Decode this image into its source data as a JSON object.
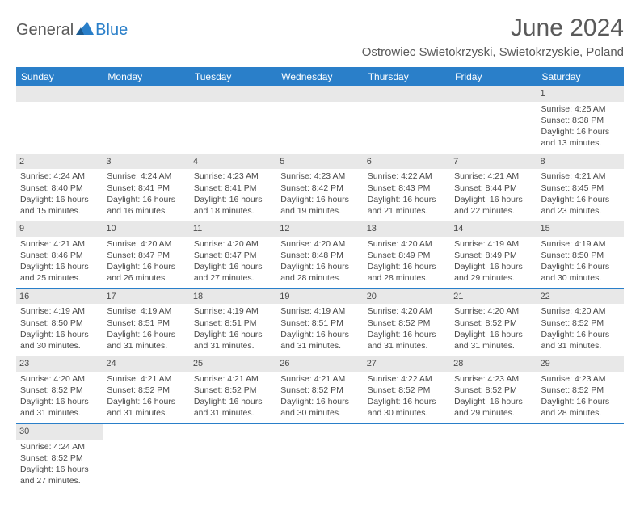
{
  "logo": {
    "part1": "General",
    "part2": "Blue"
  },
  "title": "June 2024",
  "location": "Ostrowiec Swietokrzyski, Swietokrzyskie, Poland",
  "colors": {
    "header_bg": "#2a7fc9",
    "header_text": "#ffffff",
    "daynum_bg": "#e8e8e8",
    "border": "#2a7fc9",
    "text": "#4a4a4a",
    "logo_gray": "#5a5a5a",
    "logo_blue": "#2a7fc9"
  },
  "daysOfWeek": [
    "Sunday",
    "Monday",
    "Tuesday",
    "Wednesday",
    "Thursday",
    "Friday",
    "Saturday"
  ],
  "weeks": [
    [
      {
        "empty": true
      },
      {
        "empty": true
      },
      {
        "empty": true
      },
      {
        "empty": true
      },
      {
        "empty": true
      },
      {
        "empty": true
      },
      {
        "num": "1",
        "sunrise": "Sunrise: 4:25 AM",
        "sunset": "Sunset: 8:38 PM",
        "day1": "Daylight: 16 hours",
        "day2": "and 13 minutes."
      }
    ],
    [
      {
        "num": "2",
        "sunrise": "Sunrise: 4:24 AM",
        "sunset": "Sunset: 8:40 PM",
        "day1": "Daylight: 16 hours",
        "day2": "and 15 minutes."
      },
      {
        "num": "3",
        "sunrise": "Sunrise: 4:24 AM",
        "sunset": "Sunset: 8:41 PM",
        "day1": "Daylight: 16 hours",
        "day2": "and 16 minutes."
      },
      {
        "num": "4",
        "sunrise": "Sunrise: 4:23 AM",
        "sunset": "Sunset: 8:41 PM",
        "day1": "Daylight: 16 hours",
        "day2": "and 18 minutes."
      },
      {
        "num": "5",
        "sunrise": "Sunrise: 4:23 AM",
        "sunset": "Sunset: 8:42 PM",
        "day1": "Daylight: 16 hours",
        "day2": "and 19 minutes."
      },
      {
        "num": "6",
        "sunrise": "Sunrise: 4:22 AM",
        "sunset": "Sunset: 8:43 PM",
        "day1": "Daylight: 16 hours",
        "day2": "and 21 minutes."
      },
      {
        "num": "7",
        "sunrise": "Sunrise: 4:21 AM",
        "sunset": "Sunset: 8:44 PM",
        "day1": "Daylight: 16 hours",
        "day2": "and 22 minutes."
      },
      {
        "num": "8",
        "sunrise": "Sunrise: 4:21 AM",
        "sunset": "Sunset: 8:45 PM",
        "day1": "Daylight: 16 hours",
        "day2": "and 23 minutes."
      }
    ],
    [
      {
        "num": "9",
        "sunrise": "Sunrise: 4:21 AM",
        "sunset": "Sunset: 8:46 PM",
        "day1": "Daylight: 16 hours",
        "day2": "and 25 minutes."
      },
      {
        "num": "10",
        "sunrise": "Sunrise: 4:20 AM",
        "sunset": "Sunset: 8:47 PM",
        "day1": "Daylight: 16 hours",
        "day2": "and 26 minutes."
      },
      {
        "num": "11",
        "sunrise": "Sunrise: 4:20 AM",
        "sunset": "Sunset: 8:47 PM",
        "day1": "Daylight: 16 hours",
        "day2": "and 27 minutes."
      },
      {
        "num": "12",
        "sunrise": "Sunrise: 4:20 AM",
        "sunset": "Sunset: 8:48 PM",
        "day1": "Daylight: 16 hours",
        "day2": "and 28 minutes."
      },
      {
        "num": "13",
        "sunrise": "Sunrise: 4:20 AM",
        "sunset": "Sunset: 8:49 PM",
        "day1": "Daylight: 16 hours",
        "day2": "and 28 minutes."
      },
      {
        "num": "14",
        "sunrise": "Sunrise: 4:19 AM",
        "sunset": "Sunset: 8:49 PM",
        "day1": "Daylight: 16 hours",
        "day2": "and 29 minutes."
      },
      {
        "num": "15",
        "sunrise": "Sunrise: 4:19 AM",
        "sunset": "Sunset: 8:50 PM",
        "day1": "Daylight: 16 hours",
        "day2": "and 30 minutes."
      }
    ],
    [
      {
        "num": "16",
        "sunrise": "Sunrise: 4:19 AM",
        "sunset": "Sunset: 8:50 PM",
        "day1": "Daylight: 16 hours",
        "day2": "and 30 minutes."
      },
      {
        "num": "17",
        "sunrise": "Sunrise: 4:19 AM",
        "sunset": "Sunset: 8:51 PM",
        "day1": "Daylight: 16 hours",
        "day2": "and 31 minutes."
      },
      {
        "num": "18",
        "sunrise": "Sunrise: 4:19 AM",
        "sunset": "Sunset: 8:51 PM",
        "day1": "Daylight: 16 hours",
        "day2": "and 31 minutes."
      },
      {
        "num": "19",
        "sunrise": "Sunrise: 4:19 AM",
        "sunset": "Sunset: 8:51 PM",
        "day1": "Daylight: 16 hours",
        "day2": "and 31 minutes."
      },
      {
        "num": "20",
        "sunrise": "Sunrise: 4:20 AM",
        "sunset": "Sunset: 8:52 PM",
        "day1": "Daylight: 16 hours",
        "day2": "and 31 minutes."
      },
      {
        "num": "21",
        "sunrise": "Sunrise: 4:20 AM",
        "sunset": "Sunset: 8:52 PM",
        "day1": "Daylight: 16 hours",
        "day2": "and 31 minutes."
      },
      {
        "num": "22",
        "sunrise": "Sunrise: 4:20 AM",
        "sunset": "Sunset: 8:52 PM",
        "day1": "Daylight: 16 hours",
        "day2": "and 31 minutes."
      }
    ],
    [
      {
        "num": "23",
        "sunrise": "Sunrise: 4:20 AM",
        "sunset": "Sunset: 8:52 PM",
        "day1": "Daylight: 16 hours",
        "day2": "and 31 minutes."
      },
      {
        "num": "24",
        "sunrise": "Sunrise: 4:21 AM",
        "sunset": "Sunset: 8:52 PM",
        "day1": "Daylight: 16 hours",
        "day2": "and 31 minutes."
      },
      {
        "num": "25",
        "sunrise": "Sunrise: 4:21 AM",
        "sunset": "Sunset: 8:52 PM",
        "day1": "Daylight: 16 hours",
        "day2": "and 31 minutes."
      },
      {
        "num": "26",
        "sunrise": "Sunrise: 4:21 AM",
        "sunset": "Sunset: 8:52 PM",
        "day1": "Daylight: 16 hours",
        "day2": "and 30 minutes."
      },
      {
        "num": "27",
        "sunrise": "Sunrise: 4:22 AM",
        "sunset": "Sunset: 8:52 PM",
        "day1": "Daylight: 16 hours",
        "day2": "and 30 minutes."
      },
      {
        "num": "28",
        "sunrise": "Sunrise: 4:23 AM",
        "sunset": "Sunset: 8:52 PM",
        "day1": "Daylight: 16 hours",
        "day2": "and 29 minutes."
      },
      {
        "num": "29",
        "sunrise": "Sunrise: 4:23 AM",
        "sunset": "Sunset: 8:52 PM",
        "day1": "Daylight: 16 hours",
        "day2": "and 28 minutes."
      }
    ],
    [
      {
        "num": "30",
        "sunrise": "Sunrise: 4:24 AM",
        "sunset": "Sunset: 8:52 PM",
        "day1": "Daylight: 16 hours",
        "day2": "and 27 minutes."
      },
      {
        "empty": true
      },
      {
        "empty": true
      },
      {
        "empty": true
      },
      {
        "empty": true
      },
      {
        "empty": true
      },
      {
        "empty": true
      }
    ]
  ]
}
